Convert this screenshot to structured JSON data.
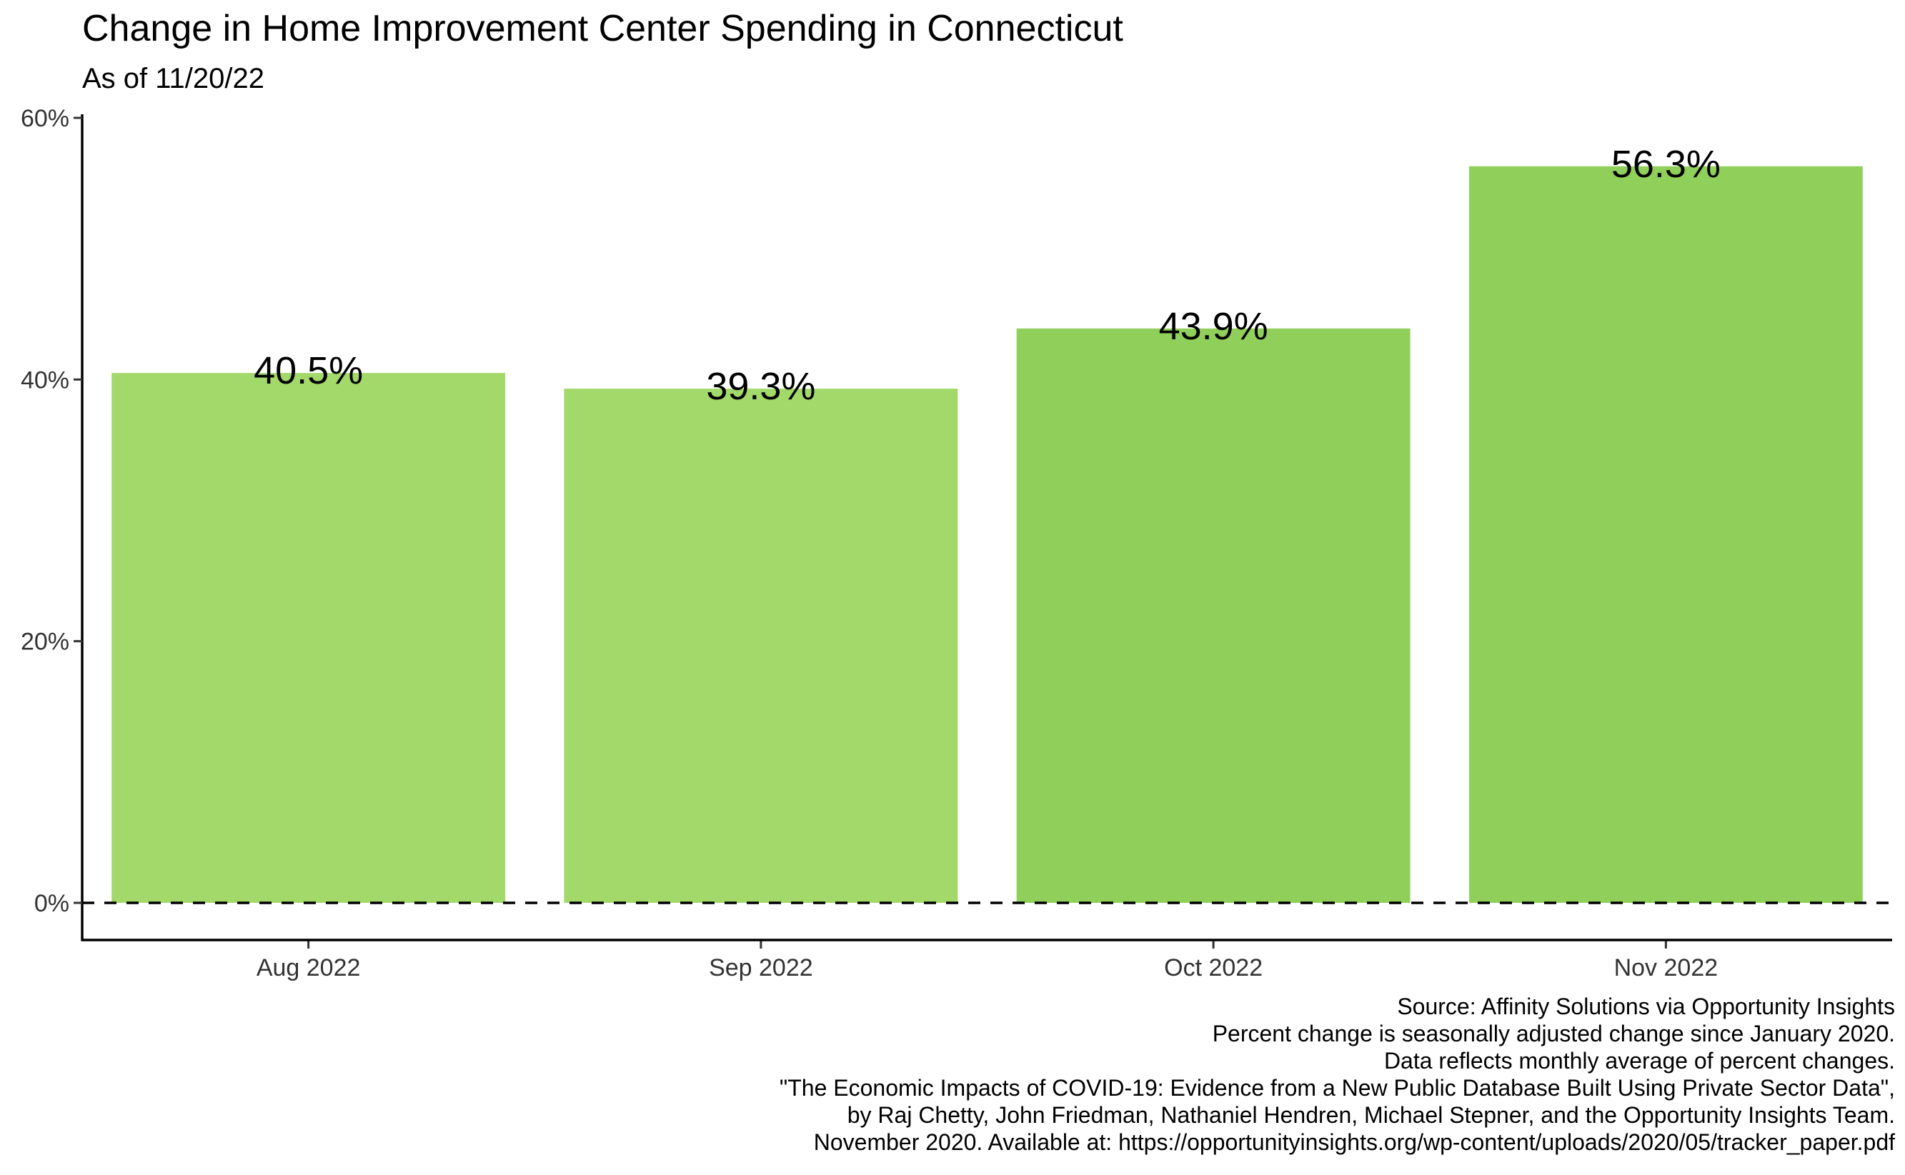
{
  "chart_data": {
    "type": "bar",
    "title": "Change in Home Improvement Center Spending in Connecticut",
    "subtitle": "As of 11/20/22",
    "categories": [
      "Aug 2022",
      "Sep 2022",
      "Oct 2022",
      "Nov 2022"
    ],
    "values": [
      40.5,
      39.3,
      43.9,
      56.3
    ],
    "data_labels": [
      "40.5%",
      "39.3%",
      "43.9%",
      "56.3%"
    ],
    "bar_colors": [
      "#a3d86a",
      "#a3d86a",
      "#90d05a",
      "#90d05a"
    ],
    "ylim": [
      -2.8,
      60
    ],
    "yticks": [
      0,
      20,
      40,
      60
    ],
    "ytick_labels": [
      "0%",
      "20%",
      "40%",
      "60%"
    ],
    "xlabel": "",
    "ylabel": "",
    "reference_line": {
      "y": 0,
      "style": "dashed"
    },
    "grid": false,
    "legend": "none"
  },
  "caption": [
    "Source: Affinity Solutions via Opportunity Insights",
    "Percent change is seasonally adjusted change since January 2020.",
    "Data reflects monthly average of percent changes.",
    "\"The Economic Impacts of COVID-19: Evidence from a New Public Database Built Using Private Sector Data\",",
    "by Raj Chetty, John Friedman, Nathaniel Hendren, Michael Stepner, and the Opportunity Insights Team.",
    "November 2020. Available at: https://opportunityinsights.org/wp-content/uploads/2020/05/tracker_paper.pdf"
  ]
}
